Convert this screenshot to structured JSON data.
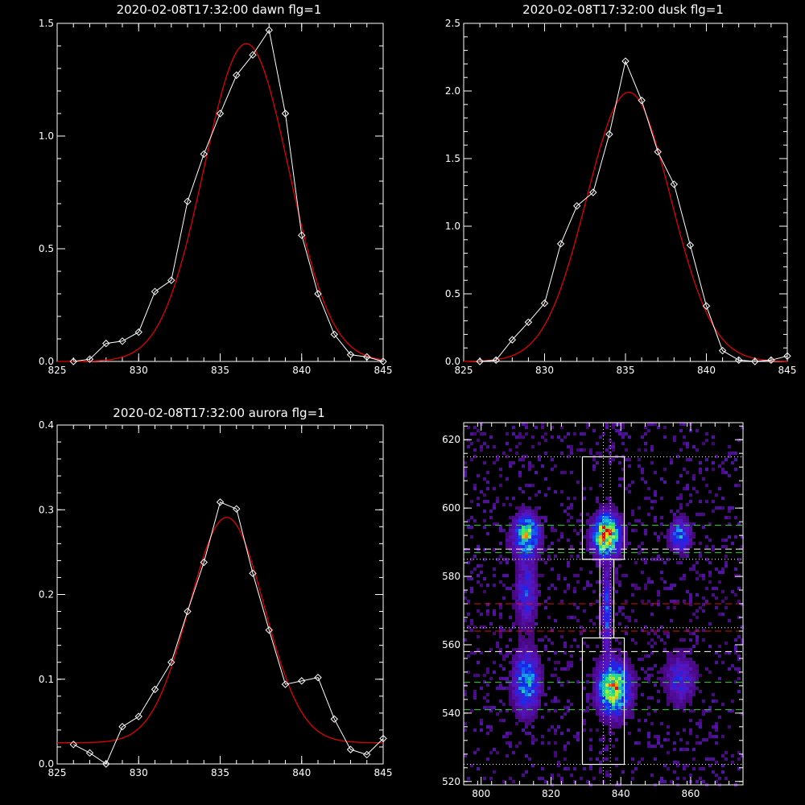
{
  "chart_data": [
    {
      "type": "line",
      "title": "2020-02-08T17:32:00 dawn flg=1",
      "xlim": [
        825,
        845
      ],
      "ylim": [
        0,
        1.5
      ],
      "xticks": [
        "825",
        "830",
        "835",
        "840",
        "845"
      ],
      "yticks": [
        "0.0",
        "0.5",
        "1.0",
        "1.5"
      ],
      "series": [
        {
          "style": "white-diamond-line",
          "x": [
            826,
            827,
            828,
            829,
            830,
            831,
            832,
            833,
            834,
            835,
            836,
            837,
            838,
            839,
            840,
            841,
            842,
            843,
            844,
            845
          ],
          "y": [
            0.0,
            0.01,
            0.08,
            0.09,
            0.13,
            0.31,
            0.36,
            0.71,
            0.92,
            1.1,
            1.27,
            1.36,
            1.47,
            1.1,
            0.56,
            0.3,
            0.12,
            0.03,
            0.02,
            0.0
          ]
        },
        {
          "style": "red-gaussian-fit",
          "amplitude": 1.41,
          "center": 836.6,
          "sigma": 2.6,
          "offset": 0.0
        }
      ]
    },
    {
      "type": "line",
      "title": "2020-02-08T17:32:00 dusk flg=1",
      "xlim": [
        825,
        845
      ],
      "ylim": [
        0,
        2.5
      ],
      "xticks": [
        "825",
        "830",
        "835",
        "840",
        "845"
      ],
      "yticks": [
        "0.0",
        "0.5",
        "1.0",
        "1.5",
        "2.0",
        "2.5"
      ],
      "series": [
        {
          "style": "white-diamond-line",
          "x": [
            826,
            827,
            828,
            829,
            830,
            831,
            832,
            833,
            834,
            835,
            836,
            837,
            838,
            839,
            840,
            841,
            842,
            843,
            844,
            845
          ],
          "y": [
            -0.01,
            0.01,
            0.16,
            0.29,
            0.43,
            0.87,
            1.15,
            1.25,
            1.68,
            2.22,
            1.93,
            1.55,
            1.31,
            0.86,
            0.41,
            0.08,
            0.01,
            0.0,
            0.01,
            0.04
          ]
        },
        {
          "style": "red-gaussian-fit",
          "amplitude": 1.99,
          "center": 835.2,
          "sigma": 2.6,
          "offset": 0.0
        }
      ]
    },
    {
      "type": "line",
      "title": "2020-02-08T17:32:00 aurora flg=1",
      "xlim": [
        825,
        845
      ],
      "ylim": [
        0,
        0.4
      ],
      "xticks": [
        "825",
        "830",
        "835",
        "840",
        "845"
      ],
      "yticks": [
        "0.0",
        "0.1",
        "0.2",
        "0.3",
        "0.4"
      ],
      "series": [
        {
          "style": "white-diamond-line",
          "x": [
            826,
            827,
            828,
            829,
            830,
            831,
            832,
            833,
            834,
            835,
            836,
            837,
            838,
            839,
            840,
            841,
            842,
            843,
            844,
            845
          ],
          "y": [
            0.023,
            0.013,
            -0.003,
            0.044,
            0.056,
            0.088,
            0.12,
            0.18,
            0.238,
            0.309,
            0.301,
            0.225,
            0.158,
            0.094,
            0.098,
            0.102,
            0.053,
            0.017,
            0.011,
            0.03
          ]
        },
        {
          "style": "red-gaussian-fit",
          "amplitude": 0.266,
          "center": 835.4,
          "sigma": 2.3,
          "offset": 0.025
        }
      ]
    },
    {
      "type": "heatmap",
      "title": "",
      "xlim": [
        795,
        875
      ],
      "ylim": [
        519,
        625
      ],
      "xticks": [
        "800",
        "820",
        "840",
        "860"
      ],
      "yticks": [
        "520",
        "540",
        "560",
        "580",
        "600",
        "620"
      ],
      "blobs": [
        {
          "x": 836,
          "y": 592,
          "sx": 2.5,
          "sy": 4,
          "peak": 1.0
        },
        {
          "x": 838,
          "y": 547,
          "sx": 3,
          "sy": 5,
          "peak": 0.85
        },
        {
          "x": 813,
          "y": 592,
          "sx": 2.5,
          "sy": 4,
          "peak": 0.7
        },
        {
          "x": 813,
          "y": 549,
          "sx": 2.5,
          "sy": 6,
          "peak": 0.55
        },
        {
          "x": 857,
          "y": 592,
          "sx": 2,
          "sy": 3,
          "peak": 0.5
        },
        {
          "x": 857,
          "y": 550,
          "sx": 3,
          "sy": 5,
          "peak": 0.3
        },
        {
          "x": 836,
          "y": 570,
          "sx": 1,
          "sy": 8,
          "peak": 0.4
        },
        {
          "x": 813,
          "y": 575,
          "sx": 2,
          "sy": 6,
          "peak": 0.35
        }
      ],
      "boxes": [
        {
          "x0": 829,
          "x1": 841,
          "y0": 585,
          "y1": 615
        },
        {
          "x0": 829,
          "x1": 841,
          "y0": 525,
          "y1": 562
        },
        {
          "x0": 834,
          "x1": 838,
          "y0": 562,
          "y1": 585
        }
      ],
      "hlines_white_dotted": [
        615,
        585,
        565,
        525
      ],
      "hlines_white_dashed": [
        588,
        558
      ],
      "hlines_green_dashed": [
        595,
        587,
        549,
        541
      ],
      "hlines_red_dashed": [
        572,
        564
      ],
      "vlines_white_dotted": [
        835,
        837
      ]
    }
  ]
}
